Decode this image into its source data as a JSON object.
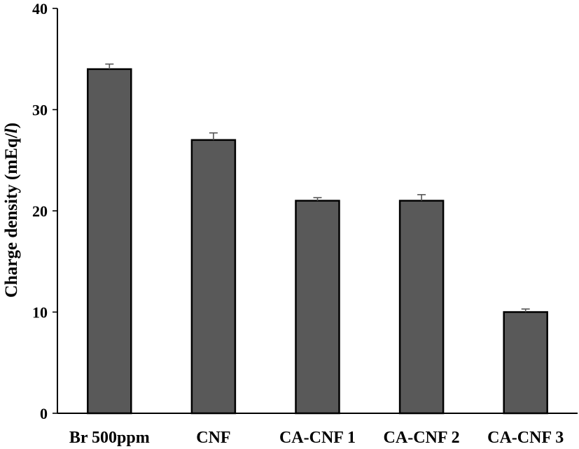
{
  "chart_data": {
    "type": "bar",
    "title": "",
    "xlabel": "",
    "ylabel": "Charge density (mEq/",
    "ylabel_unit_italic": "l",
    "ylabel_close": ")",
    "categories": [
      "Br 500ppm",
      "CNF",
      "CA-CNF 1",
      "CA-CNF 2",
      "CA-CNF 3"
    ],
    "values": [
      34,
      27,
      21,
      21,
      10
    ],
    "errors": [
      0.5,
      0.7,
      0.3,
      0.6,
      0.3
    ],
    "ylim": [
      0,
      40
    ],
    "yticks": [
      0,
      10,
      20,
      30,
      40
    ],
    "grid": false,
    "bar_color": "#595959"
  }
}
